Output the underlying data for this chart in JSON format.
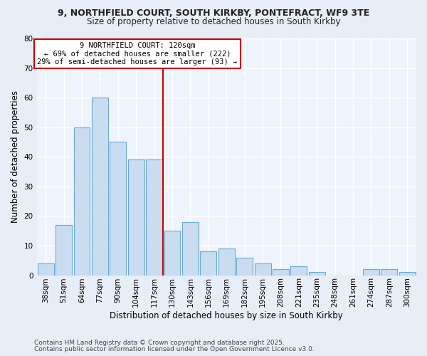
{
  "title1": "9, NORTHFIELD COURT, SOUTH KIRKBY, PONTEFRACT, WF9 3TE",
  "title2": "Size of property relative to detached houses in South Kirkby",
  "xlabel": "Distribution of detached houses by size in South Kirkby",
  "ylabel": "Number of detached properties",
  "bar_labels": [
    "38sqm",
    "51sqm",
    "64sqm",
    "77sqm",
    "90sqm",
    "104sqm",
    "117sqm",
    "130sqm",
    "143sqm",
    "156sqm",
    "169sqm",
    "182sqm",
    "195sqm",
    "208sqm",
    "221sqm",
    "235sqm",
    "248sqm",
    "261sqm",
    "274sqm",
    "287sqm",
    "300sqm"
  ],
  "bar_values": [
    4,
    17,
    50,
    60,
    45,
    39,
    39,
    15,
    18,
    8,
    9,
    6,
    4,
    2,
    3,
    1,
    0,
    0,
    2,
    2,
    1
  ],
  "bar_color": "#C9DCF0",
  "bar_edge_color": "#6AAAD4",
  "ylim": [
    0,
    80
  ],
  "yticks": [
    0,
    10,
    20,
    30,
    40,
    50,
    60,
    70,
    80
  ],
  "property_line_x": 6.5,
  "property_line_color": "#CC0000",
  "annotation_title": "9 NORTHFIELD COURT: 120sqm",
  "annotation_line1": "← 69% of detached houses are smaller (222)",
  "annotation_line2": "29% of semi-detached houses are larger (93) →",
  "annotation_box_color": "#CC0000",
  "footnote1": "Contains HM Land Registry data © Crown copyright and database right 2025.",
  "footnote2": "Contains public sector information licensed under the Open Government Licence v3.0.",
  "bg_color": "#E8EEF8",
  "plot_bg_color": "#EEF4FC",
  "grid_color": "#FFFFFF",
  "title_fontsize": 9,
  "subtitle_fontsize": 8.5,
  "xlabel_fontsize": 8.5,
  "ylabel_fontsize": 8.5,
  "tick_fontsize": 7.5,
  "footnote_fontsize": 6.5
}
